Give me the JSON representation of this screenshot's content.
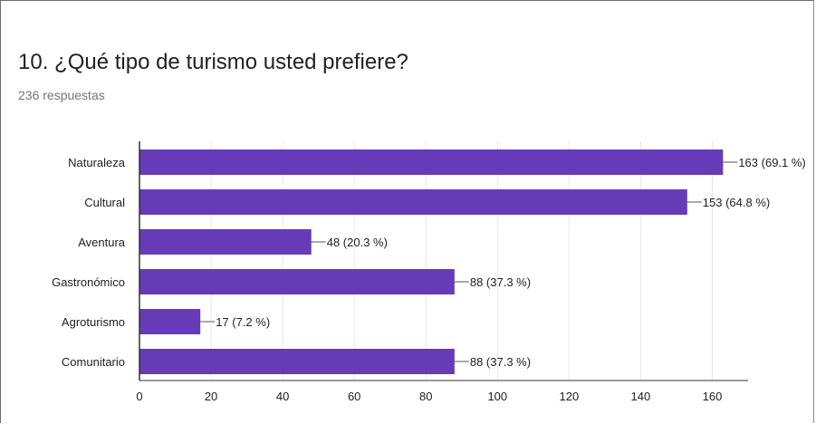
{
  "form": {
    "question": "10. ¿Qué tipo de turismo usted prefiere?",
    "responses": "236 respuestas"
  },
  "colors": {
    "bar": "#673ab7",
    "grid": "#e6e6e6",
    "axis": "#333333",
    "text": "#212121",
    "subtext": "#757575"
  },
  "chart_data": {
    "type": "bar",
    "orientation": "horizontal",
    "title": "",
    "xlabel": "",
    "ylabel": "",
    "categories": [
      "Naturaleza",
      "Cultural",
      "Aventura",
      "Gastronómico",
      "Agroturismo",
      "Comunitario"
    ],
    "values": [
      163,
      153,
      48,
      88,
      17,
      88
    ],
    "value_labels": [
      "163 (69.1 %)",
      "153 (64.8 %)",
      "48 (20.3 %)",
      "88 (37.3 %)",
      "17 (7.2 %)",
      "88 (37.3 %)"
    ],
    "xlim": [
      0,
      170
    ],
    "xticks": [
      0,
      20,
      40,
      60,
      80,
      100,
      120,
      140,
      160
    ],
    "grid": true
  }
}
